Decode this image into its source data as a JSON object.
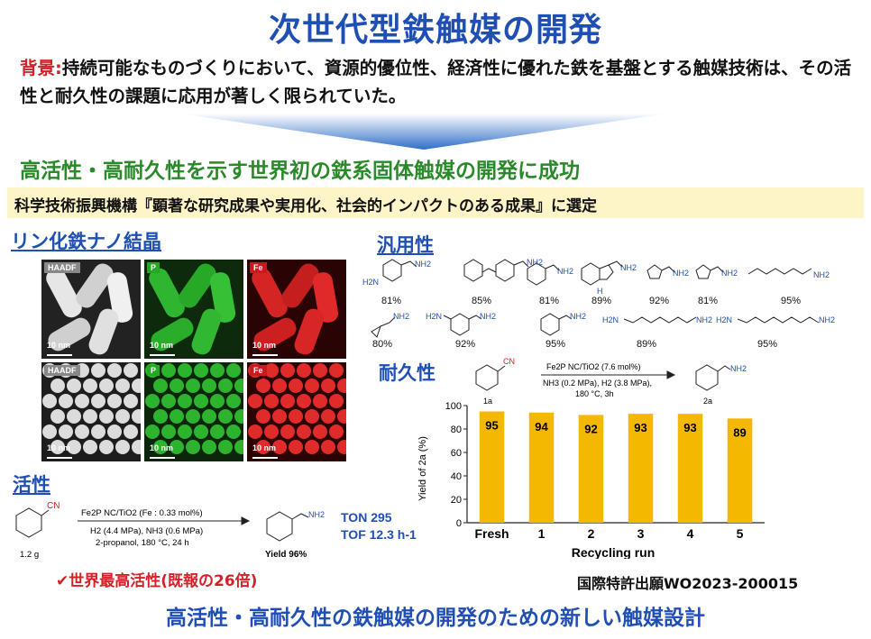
{
  "title": "次世代型鉄触媒の開発",
  "background": {
    "label": "背景",
    "sep": ":",
    "text": "持続可能なものづくりにおいて、資源的優位性、経済性に優れた鉄を基盤とする触媒技術は、その活性と耐久性の課題に応用が著しく限られていた。"
  },
  "headline": "高活性・高耐久性を示す世界初の鉄系固体触媒の開発に成功",
  "selection": "科学技術振興機構『顕著な研究成果や実用化、社会的インパクトのある成果』に選定",
  "sections": {
    "nano": "リン化鉄ナノ結晶",
    "versatility": "汎用性",
    "durability": "耐久性",
    "activity": "活性"
  },
  "tiles": {
    "haadf": "HAADF",
    "p": "P",
    "fe": "Fe",
    "scale": "10 nm"
  },
  "substrates": [
    {
      "yield": "81%"
    },
    {
      "yield": "85%"
    },
    {
      "yield": "81%"
    },
    {
      "yield": "89%"
    },
    {
      "yield": "92%"
    },
    {
      "yield": "81%"
    },
    {
      "yield": "95%"
    },
    {
      "yield": "80%"
    },
    {
      "yield": "92%"
    },
    {
      "yield": "95%"
    },
    {
      "yield": "89%"
    },
    {
      "yield": "95%"
    }
  ],
  "labels": {
    "nh2": "NH2",
    "h2n": "H2N",
    "nh": "H"
  },
  "durability_rxn": {
    "reagent_top": "Fe2P NC/TiO2 (7.6 mol%)",
    "cond1": "NH3 (0.2 MPa), H2 (3.8 MPa),",
    "cond2": "180 °C, 3h",
    "sm": "1a",
    "prod": "2a",
    "cn": "CN"
  },
  "activity_rxn": {
    "reagent": "Fe2P NC/TiO2 (Fe : 0.33 mol%)",
    "cond1": "H2 (4.4 MPa), NH3 (0.6 MPa)",
    "cond2": "2-propanol, 180 °C, 24 h",
    "scale": "1.2 g",
    "yield": "Yield 96%",
    "ton": "TON 295",
    "tof": "TOF 12.3 h-1",
    "cn": "CN"
  },
  "best": "✔世界最高活性(既報の26倍)",
  "patent": "国際特許出願WO2023-200015",
  "bottom": "高活性・高耐久性の鉄触媒の開発のための新しい触媒設計",
  "chart_data": {
    "type": "bar",
    "categories": [
      "Fresh",
      "1",
      "2",
      "3",
      "4",
      "5"
    ],
    "values": [
      95,
      94,
      92,
      93,
      93,
      89
    ],
    "xlabel": "Recycling run",
    "ylabel": "Yield of 2a (%)",
    "ylim": [
      0,
      100
    ],
    "yticks": [
      0,
      20,
      40,
      60,
      80,
      100
    ],
    "bar_color": "#f5b800"
  }
}
